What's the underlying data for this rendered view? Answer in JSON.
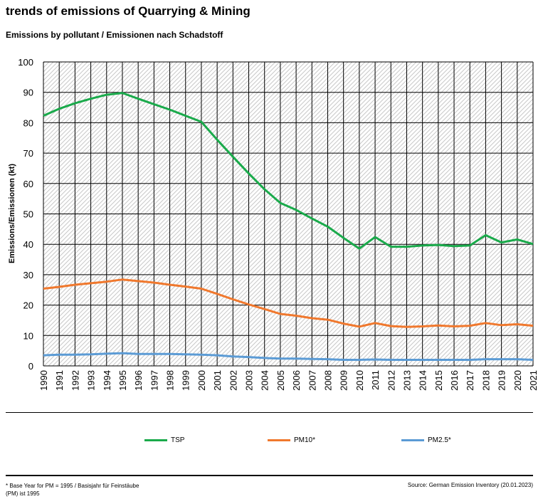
{
  "title": "trends of emissions of Quarrying & Mining",
  "subtitle": "Emissions by pollutant / Emissionen nach Schadstoff",
  "footnote": "* Base Year for PM = 1995 / Basisjahr für Feinstäube (PM) ist 1995",
  "source": "Source: German Emission Inventory (20.01.2023)",
  "chart_data": {
    "type": "line",
    "ylabel": "Emissions/Emissionen (kt)",
    "ylim": [
      0,
      100
    ],
    "yticks": [
      0,
      10,
      20,
      30,
      40,
      50,
      60,
      70,
      80,
      90,
      100
    ],
    "grid": true,
    "legend": "bottom",
    "categories": [
      "1990",
      "1991",
      "1992",
      "1993",
      "1994",
      "1995",
      "1996",
      "1997",
      "1998",
      "1999",
      "2000",
      "2001",
      "2002",
      "2003",
      "2004",
      "2005",
      "2006",
      "2007",
      "2008",
      "2009",
      "2010",
      "2011",
      "2012",
      "2013",
      "2014",
      "2015",
      "2016",
      "2017",
      "2018",
      "2019",
      "2020",
      "2021"
    ],
    "series": [
      {
        "name": "TSP",
        "color": "#1aaa4b",
        "values": [
          82.3,
          84.6,
          86.4,
          87.9,
          89.2,
          89.8,
          87.9,
          86.1,
          84.3,
          82.3,
          80.3,
          74.4,
          68.8,
          63.3,
          58.1,
          53.6,
          51.3,
          48.5,
          45.8,
          42.1,
          38.6,
          42.4,
          39.2,
          39.2,
          39.6,
          39.8,
          39.4,
          39.6,
          43.0,
          40.6,
          41.6,
          40.1
        ]
      },
      {
        "name": "PM10*",
        "color": "#f0782d",
        "values": [
          25.4,
          26.0,
          26.7,
          27.2,
          27.7,
          28.4,
          27.9,
          27.4,
          26.7,
          26.1,
          25.4,
          23.7,
          21.9,
          20.2,
          18.7,
          17.1,
          16.5,
          15.7,
          15.2,
          13.9,
          12.9,
          14.1,
          13.1,
          12.8,
          13.0,
          13.3,
          13.0,
          13.2,
          14.1,
          13.4,
          13.7,
          13.2
        ]
      },
      {
        "name": "PM2.5*",
        "color": "#5b9bd5",
        "values": [
          3.5,
          3.7,
          3.7,
          3.8,
          4.0,
          4.2,
          3.9,
          3.9,
          3.9,
          3.8,
          3.7,
          3.5,
          3.1,
          2.9,
          2.6,
          2.4,
          2.4,
          2.3,
          2.2,
          2.0,
          2.0,
          2.1,
          2.0,
          2.0,
          2.0,
          2.0,
          2.0,
          2.0,
          2.2,
          2.2,
          2.2,
          2.0
        ]
      }
    ]
  }
}
